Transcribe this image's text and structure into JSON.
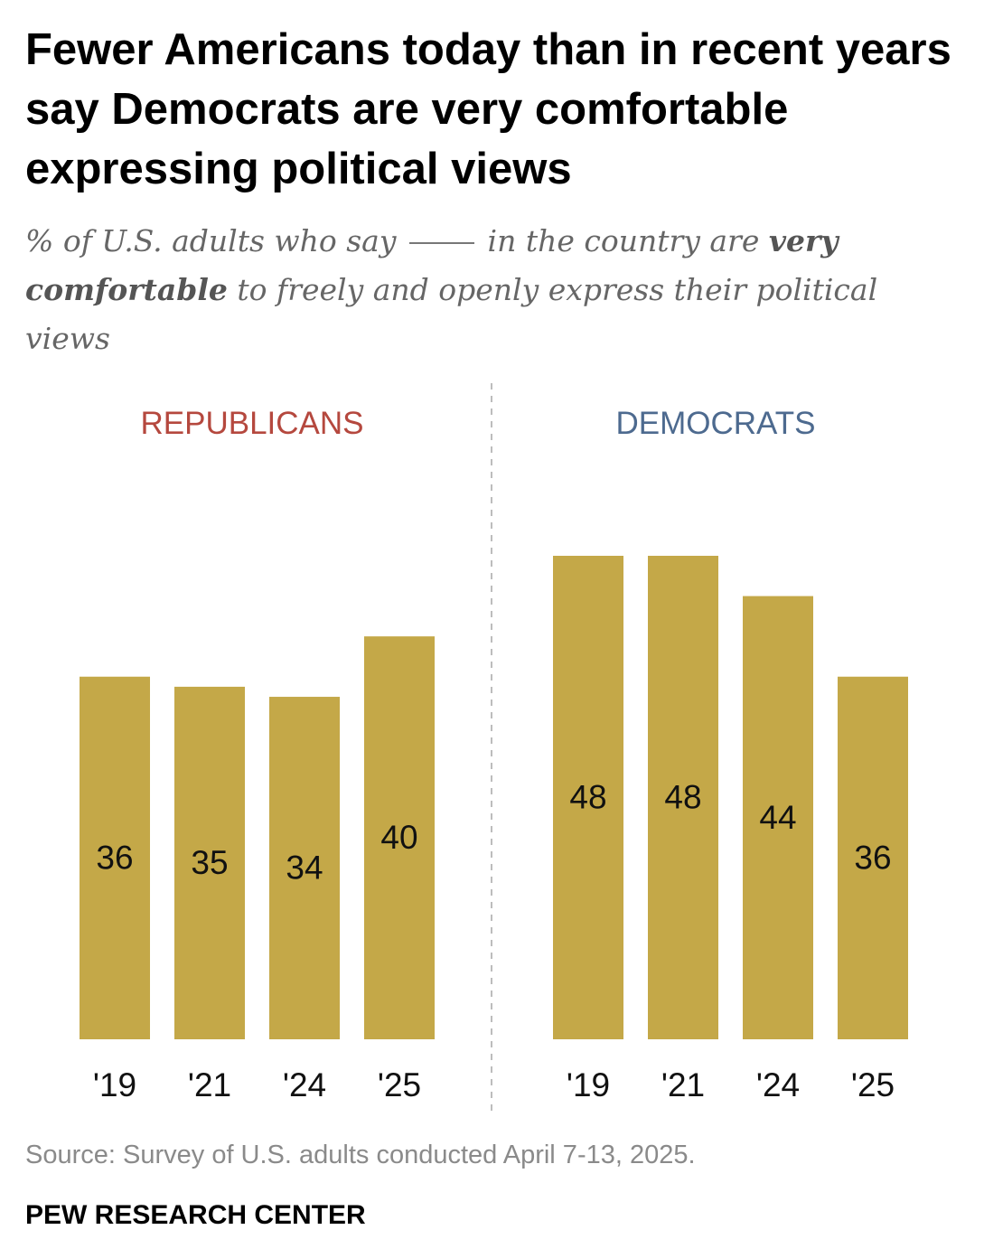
{
  "title": "Fewer Americans today than in recent years say Democrats are very comfortable expressing political views",
  "subtitle": {
    "part1": "% of U.S. adults who say",
    "part2": "in the country are",
    "bold": "very comfortable",
    "part3": "to freely and openly express their political views"
  },
  "colors": {
    "bar": "#c4a848",
    "republicans": "#b5483e",
    "democrats": "#4d6a8f",
    "divider": "#bdbdbd"
  },
  "chart_data": [
    {
      "type": "bar",
      "panel": "REPUBLICANS",
      "categories": [
        "'19",
        "'21",
        "'24",
        "'25"
      ],
      "values": [
        36,
        35,
        34,
        40
      ],
      "ylim": [
        0,
        48
      ]
    },
    {
      "type": "bar",
      "panel": "DEMOCRATS",
      "categories": [
        "'19",
        "'21",
        "'24",
        "'25"
      ],
      "values": [
        48,
        48,
        44,
        36
      ],
      "ylim": [
        0,
        48
      ]
    }
  ],
  "source": "Source: Survey of U.S. adults conducted April 7-13, 2025.",
  "brand": "PEW RESEARCH CENTER"
}
